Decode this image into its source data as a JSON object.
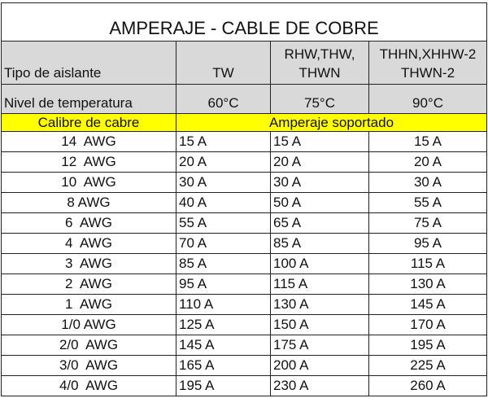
{
  "title": "AMPERAJE - CABLE DE COBRE",
  "header": {
    "row_label": "Tipo de aislante",
    "columns": [
      "TW",
      "RHW,THW,\nTHWN",
      "THHN,XHHW-2\nTHWN-2"
    ],
    "columns_lines": [
      [
        "TW"
      ],
      [
        "RHW,THW,",
        "THWN"
      ],
      [
        "THHN,XHHW-2",
        "THWN-2"
      ]
    ]
  },
  "temperature": {
    "label": "Nivel de temperatura",
    "values": [
      "60°C",
      "75°C",
      "90°C"
    ]
  },
  "section": {
    "left": "Calibre de cabre",
    "right": "Amperaje soportado"
  },
  "colors": {
    "header_gray": "#d9d9d9",
    "highlight_yellow": "#ffff00"
  },
  "rows": [
    {
      "gauge": "14  AWG",
      "tw": "15 A",
      "thw": "15 A",
      "thhn": "15 A"
    },
    {
      "gauge": "12  AWG",
      "tw": "20 A",
      "thw": "20 A",
      "thhn": "20 A"
    },
    {
      "gauge": "10  AWG",
      "tw": "30 A",
      "thw": "30 A",
      "thhn": "30 A"
    },
    {
      "gauge": "8 AWG",
      "tw": "40 A",
      "thw": "50 A",
      "thhn": "55 A"
    },
    {
      "gauge": "6  AWG",
      "tw": "55 A",
      "thw": "65 A",
      "thhn": "75 A"
    },
    {
      "gauge": "4  AWG",
      "tw": "70 A",
      "thw": "85 A",
      "thhn": "95 A"
    },
    {
      "gauge": "3  AWG",
      "tw": "85 A",
      "thw": "100 A",
      "thhn": "115 A"
    },
    {
      "gauge": "2  AWG",
      "tw": "95 A",
      "thw": "115 A",
      "thhn": "130 A"
    },
    {
      "gauge": "1  AWG",
      "tw": "110 A",
      "thw": "130 A",
      "thhn": "145 A"
    },
    {
      "gauge": "1/0 AWG",
      "tw": "125 A",
      "thw": "150 A",
      "thhn": "170 A"
    },
    {
      "gauge": "2/0  AWG",
      "tw": "145 A",
      "thw": "175 A",
      "thhn": "195 A"
    },
    {
      "gauge": "3/0  AWG",
      "tw": "165 A",
      "thw": "200 A",
      "thhn": "225 A"
    },
    {
      "gauge": "4/0  AWG",
      "tw": "195 A",
      "thw": "230 A",
      "thhn": "260 A"
    }
  ]
}
